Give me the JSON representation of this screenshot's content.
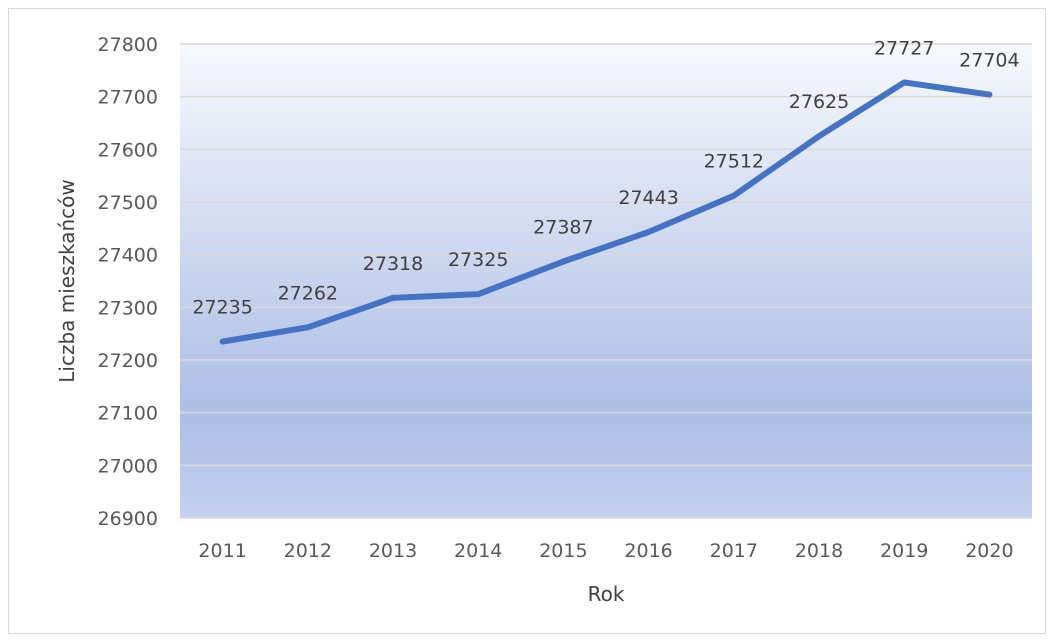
{
  "chart_data": {
    "type": "line",
    "title": "",
    "xlabel": "Rok",
    "ylabel": "Liczba mieszkańców",
    "categories": [
      "2011",
      "2012",
      "2013",
      "2014",
      "2015",
      "2016",
      "2017",
      "2018",
      "2019",
      "2020"
    ],
    "series": [
      {
        "values": [
          27235,
          27262,
          27318,
          27325,
          27387,
          27443,
          27512,
          27625,
          27727,
          27704
        ],
        "color": "#4472c4"
      }
    ],
    "data_labels": [
      "27235",
      "27262",
      "27318",
      "27325",
      "27387",
      "27443",
      "27512",
      "27625",
      "27727",
      "27704"
    ],
    "ylim": [
      26900,
      27800
    ],
    "y_ticks": [
      "26900",
      "27000",
      "27100",
      "27200",
      "27300",
      "27400",
      "27500",
      "27600",
      "27700",
      "27800"
    ],
    "grid": true,
    "legend": "none",
    "plot_background": "gradient light-to-blue"
  }
}
